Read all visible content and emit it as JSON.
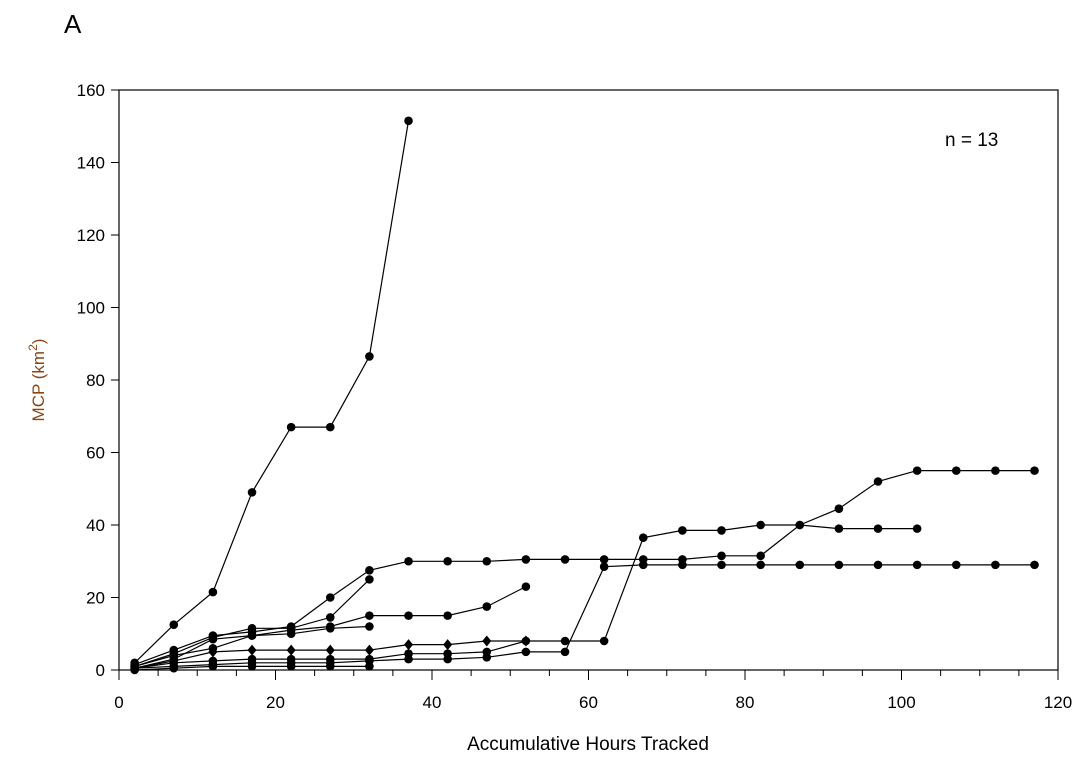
{
  "chart_data": {
    "type": "line",
    "panel_label": "A",
    "xlabel": "Accumulative Hours Tracked",
    "ylabel": {
      "text": "MCP (km",
      "sup": "2",
      "suffix": ")",
      "color": "#8B4513"
    },
    "annotation": "n = 13",
    "xlim": [
      0,
      120
    ],
    "ylim": [
      0,
      160
    ],
    "xticks": [
      0,
      20,
      40,
      60,
      80,
      100,
      120
    ],
    "yticks": [
      0,
      20,
      40,
      60,
      80,
      100,
      120,
      140,
      160
    ],
    "x_minor_step": 5,
    "grid": false,
    "legend": "none",
    "marker_color": "#000000",
    "series": [
      {
        "x": [
          2,
          7,
          12,
          17,
          22,
          27,
          32,
          37
        ],
        "y": [
          2,
          12.5,
          21.5,
          49,
          67,
          67,
          86.5,
          151.5
        ]
      },
      {
        "x": [
          2,
          7,
          12,
          17,
          22,
          27,
          32,
          37,
          42,
          47,
          52,
          57,
          62,
          67,
          72,
          77,
          82,
          87,
          92,
          97,
          102,
          107,
          112,
          117
        ],
        "y": [
          1.5,
          5.5,
          9.5,
          10.5,
          12,
          20,
          27.5,
          30,
          30,
          30,
          30.5,
          30.5,
          30.5,
          30.5,
          30.5,
          31.5,
          31.5,
          40,
          44.5,
          52,
          55,
          55,
          55,
          55
        ]
      },
      {
        "x": [
          2,
          7,
          12,
          17,
          22,
          27,
          32
        ],
        "y": [
          1,
          4.5,
          9,
          11.5,
          11.5,
          14.5,
          25
        ]
      },
      {
        "x": [
          2,
          7,
          12,
          17,
          22,
          27,
          32,
          37,
          42,
          47,
          52
        ],
        "y": [
          1,
          4,
          6,
          9.5,
          11,
          12,
          15,
          15,
          15,
          17.5,
          23
        ]
      },
      {
        "x": [
          2,
          7,
          12,
          17,
          22,
          27,
          32
        ],
        "y": [
          0.5,
          3,
          8.5,
          9.5,
          10,
          11.5,
          12
        ]
      },
      {
        "x": [
          2,
          7,
          12,
          17,
          22,
          27,
          32,
          37,
          42,
          47,
          52
        ],
        "y": [
          0.5,
          2.5,
          5,
          5.5,
          5.5,
          5.5,
          5.5,
          7,
          7,
          8,
          8
        ],
        "marker": "diamond"
      },
      {
        "x": [
          2,
          7,
          12,
          17,
          22,
          27,
          32,
          37,
          42,
          47,
          52,
          57,
          62,
          67,
          72,
          77,
          82,
          87,
          92,
          97,
          102
        ],
        "y": [
          0.5,
          2,
          2.5,
          3,
          3,
          3,
          3,
          4.5,
          4.5,
          5,
          8,
          8,
          8,
          36.5,
          38.5,
          38.5,
          40,
          40,
          39,
          39,
          39
        ]
      },
      {
        "x": [
          2,
          7,
          12,
          17,
          22,
          27,
          32,
          37,
          42,
          47,
          52,
          57,
          62,
          67,
          72,
          77,
          82,
          87,
          92,
          97,
          102,
          107,
          112,
          117
        ],
        "y": [
          0.5,
          1,
          1.5,
          2,
          2,
          2,
          2.5,
          3,
          3,
          3.5,
          5,
          5,
          28.5,
          29,
          29,
          29,
          29,
          29,
          29,
          29,
          29,
          29,
          29,
          29
        ]
      },
      {
        "x": [
          2,
          7,
          12,
          17,
          22,
          27,
          32
        ],
        "y": [
          0,
          0.5,
          1,
          1,
          1,
          1,
          1
        ]
      }
    ]
  }
}
